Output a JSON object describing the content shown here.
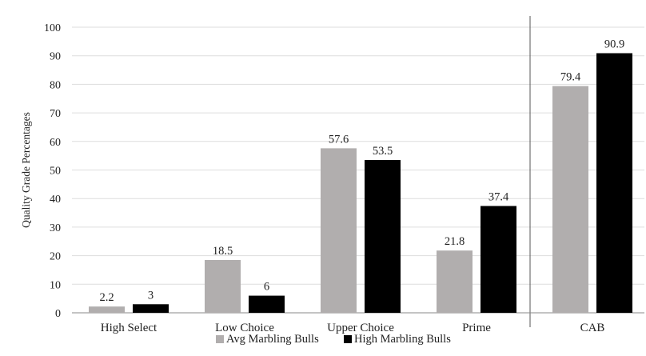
{
  "chart_data": {
    "type": "bar",
    "title": "",
    "xlabel": "",
    "ylabel": "Quality Grade Percentages",
    "ylim": [
      0,
      100
    ],
    "yticks": [
      0,
      10,
      20,
      30,
      40,
      50,
      60,
      70,
      80,
      90,
      100
    ],
    "grid": true,
    "legend_position": "bottom",
    "categories": [
      "High Select",
      "Low Choice",
      "Upper Choice",
      "Prime",
      "CAB"
    ],
    "series": [
      {
        "name": "Avg Marbling Bulls",
        "color": "#b1aeae",
        "values": [
          2.2,
          18.5,
          57.6,
          21.8,
          79.4
        ],
        "labels": [
          "2.2",
          "18.5",
          "57.6",
          "21.8",
          "79.4"
        ]
      },
      {
        "name": "High Marbling Bulls",
        "color": "#000000",
        "values": [
          3,
          6,
          53.5,
          37.4,
          90.9
        ],
        "labels": [
          "3",
          "6",
          "53.5",
          "37.4",
          "90.9"
        ]
      }
    ]
  }
}
